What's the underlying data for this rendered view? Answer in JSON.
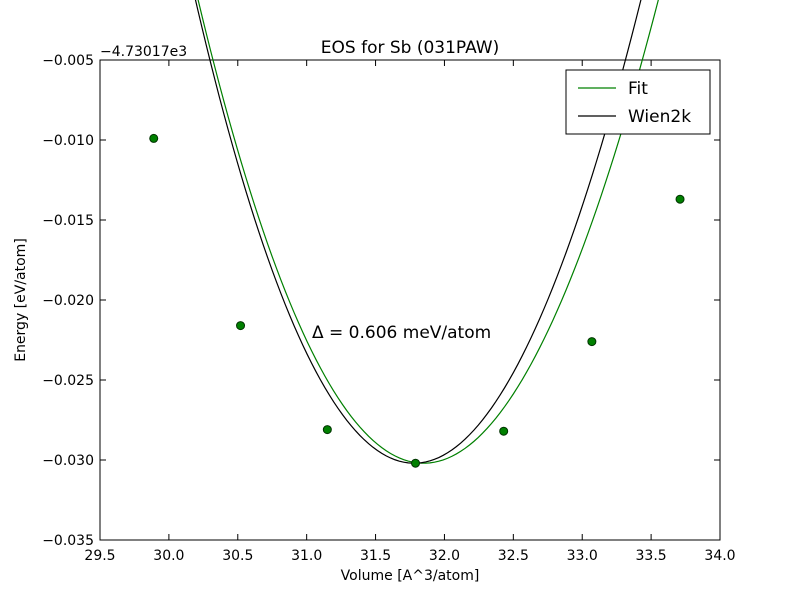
{
  "chart_data": {
    "type": "line",
    "title": "EOS for Sb (031PAW)",
    "xlabel": "Volume [A^3/atom]",
    "ylabel": "Energy [eV/atom]",
    "y_offset_label": "−4.73017e3",
    "xlim": [
      29.5,
      34.0
    ],
    "ylim": [
      -0.035,
      -0.005
    ],
    "x_ticks": [
      29.5,
      30.0,
      30.5,
      31.0,
      31.5,
      32.0,
      32.5,
      33.0,
      33.5,
      34.0
    ],
    "x_tick_labels": [
      "29.5",
      "30.0",
      "30.5",
      "31.0",
      "31.5",
      "32.0",
      "32.5",
      "33.0",
      "33.5",
      "34.0"
    ],
    "y_ticks": [
      -0.035,
      -0.03,
      -0.025,
      -0.02,
      -0.015,
      -0.01,
      -0.005
    ],
    "y_tick_labels": [
      "−0.035",
      "−0.030",
      "−0.025",
      "−0.020",
      "−0.015",
      "−0.010",
      "−0.005"
    ],
    "annotation": "Δ = 0.606 meV/atom",
    "legend_position": "top-right",
    "grid": false,
    "series": [
      {
        "name": "Fit",
        "color": "#008000",
        "style": "line",
        "fit": {
          "v0": 31.85,
          "e0": -0.0302,
          "a": 0.0104,
          "b": -0.00024
        },
        "x_range": [
          29.89,
          33.71
        ]
      },
      {
        "name": "Wien2k",
        "color": "#000000",
        "style": "line",
        "fit": {
          "v0": 31.78,
          "e0": -0.0302,
          "a": 0.0111,
          "b": -0.00025
        },
        "x_range": [
          29.89,
          33.71
        ]
      }
    ],
    "points": {
      "color": "#008000",
      "edge_color": "#003300",
      "x": [
        29.89,
        30.52,
        31.15,
        31.79,
        32.43,
        33.07,
        33.71
      ],
      "y": [
        -0.0099,
        -0.0216,
        -0.0281,
        -0.0302,
        -0.0282,
        -0.0226,
        -0.0137
      ]
    }
  }
}
